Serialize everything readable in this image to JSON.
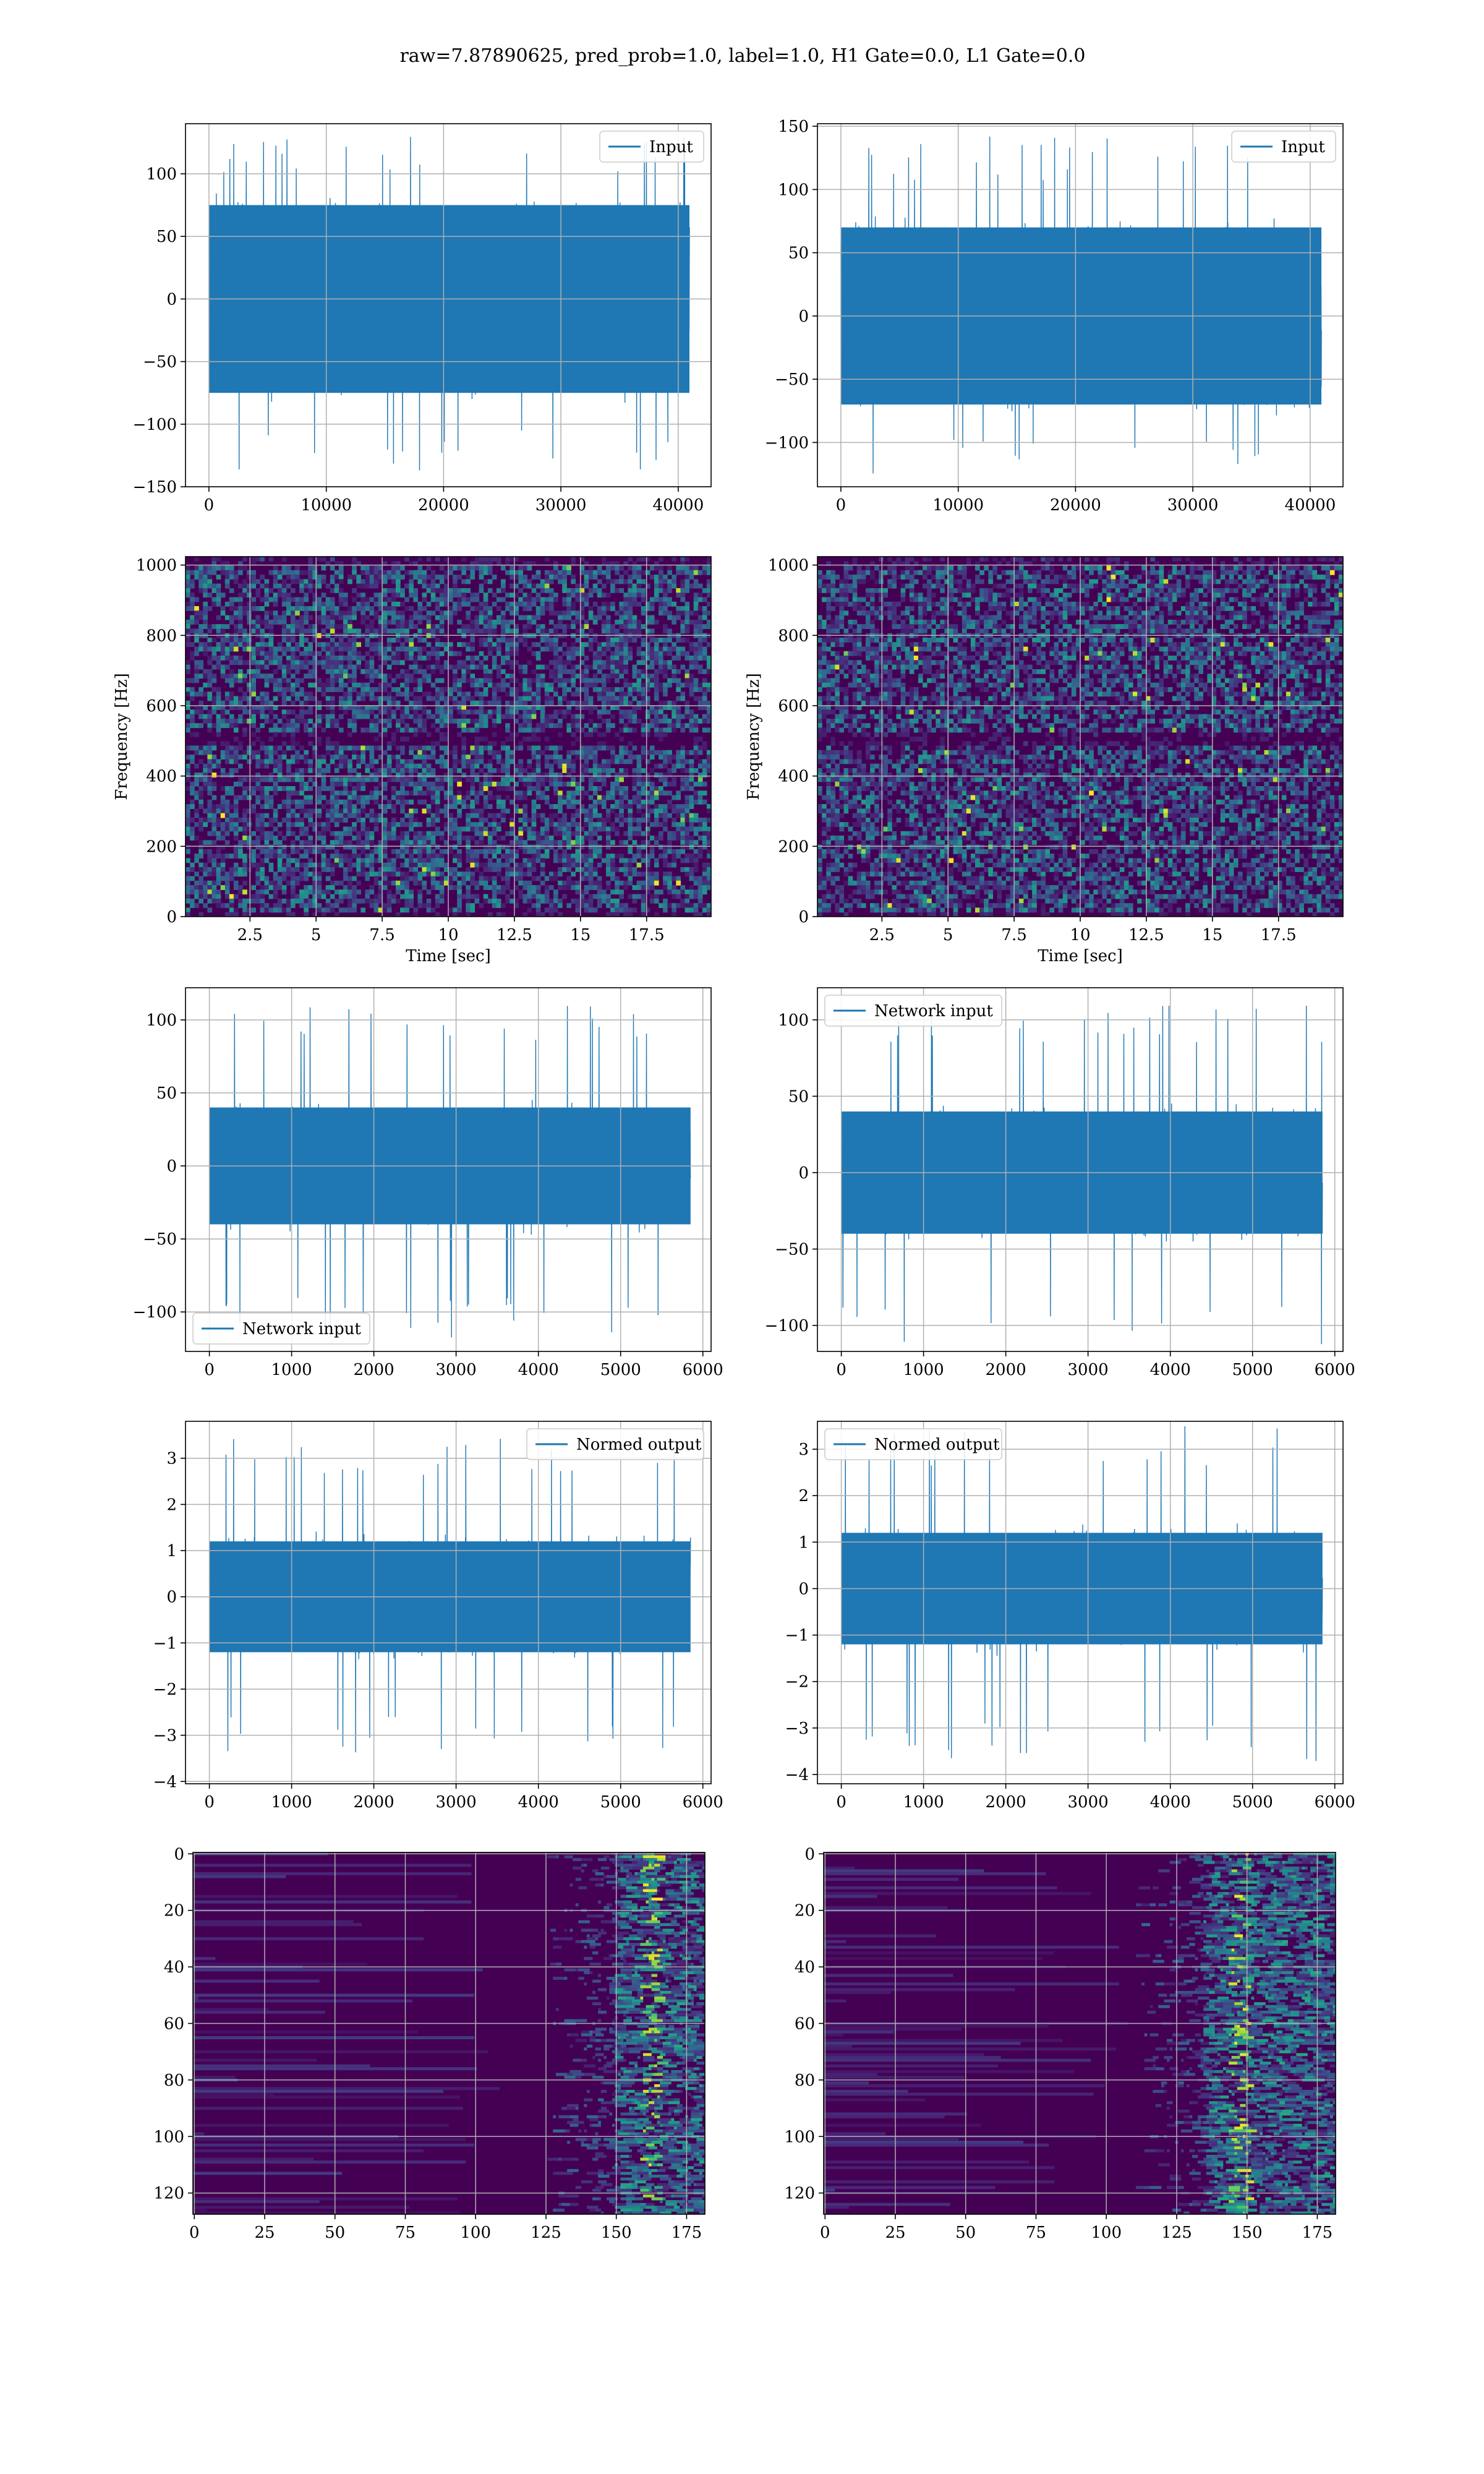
{
  "figure_title": "raw=7.87890625, pred_prob=1.0, label=1.0, H1 Gate=0.0, L1 Gate=0.0",
  "colors": {
    "series": "#1f77b4",
    "viridis_low": "#440154",
    "viridis_mid": "#21918c",
    "viridis_high": "#fde725",
    "grid": "#b0b0b0"
  },
  "chart_data": [
    {
      "id": "h1-input",
      "type": "line",
      "legend": "Input",
      "legend_loc": "upper right",
      "xlim": [
        -2000,
        42800
      ],
      "ylim": [
        -150,
        140
      ],
      "xticks": [
        0,
        10000,
        20000,
        30000,
        40000
      ],
      "yticks": [
        -150,
        -100,
        -50,
        0,
        50,
        100
      ],
      "grid": true,
      "series": [
        {
          "name": "Input",
          "n": 40960,
          "x_range": [
            0,
            40960
          ],
          "band": [
            -75,
            75
          ],
          "peaks": [
            -137,
            130
          ]
        }
      ]
    },
    {
      "id": "l1-input",
      "type": "line",
      "legend": "Input",
      "legend_loc": "upper right",
      "xlim": [
        -2000,
        42800
      ],
      "ylim": [
        -135,
        152
      ],
      "xticks": [
        0,
        10000,
        20000,
        30000,
        40000
      ],
      "yticks": [
        -100,
        -50,
        0,
        50,
        100,
        150
      ],
      "grid": true,
      "series": [
        {
          "name": "Input",
          "n": 40960,
          "x_range": [
            0,
            40960
          ],
          "band": [
            -70,
            70
          ],
          "peaks": [
            -125,
            142
          ]
        }
      ]
    },
    {
      "id": "h1-spectrogram",
      "type": "heatmap",
      "xlabel": "Time [sec]",
      "ylabel": "Frequency [Hz]",
      "xlim": [
        0.06,
        19.94
      ],
      "ylim": [
        0,
        1024
      ],
      "xticks": [
        2.5,
        5.0,
        7.5,
        10.0,
        12.5,
        15.0,
        17.5
      ],
      "yticks": [
        0,
        200,
        400,
        600,
        800,
        1000
      ],
      "colormap": "viridis",
      "grid": true
    },
    {
      "id": "l1-spectrogram",
      "type": "heatmap",
      "xlabel": "Time [sec]",
      "ylabel": "Frequency [Hz]",
      "xlim": [
        0.06,
        19.94
      ],
      "ylim": [
        0,
        1024
      ],
      "xticks": [
        2.5,
        5.0,
        7.5,
        10.0,
        12.5,
        15.0,
        17.5
      ],
      "yticks": [
        0,
        200,
        400,
        600,
        800,
        1000
      ],
      "colormap": "viridis",
      "grid": true
    },
    {
      "id": "h1-network-input",
      "type": "line",
      "legend": "Network input",
      "legend_loc": "lower left",
      "xlim": [
        -290,
        6100
      ],
      "ylim": [
        -127,
        122
      ],
      "xticks": [
        0,
        1000,
        2000,
        3000,
        4000,
        5000,
        6000
      ],
      "yticks": [
        -100,
        -50,
        0,
        50,
        100
      ],
      "grid": true,
      "series": [
        {
          "name": "Network input",
          "n": 5850,
          "x_range": [
            0,
            5850
          ],
          "band": [
            -40,
            40
          ],
          "peaks": [
            -118,
            110
          ]
        }
      ]
    },
    {
      "id": "l1-network-input",
      "type": "line",
      "legend": "Network input",
      "legend_loc": "upper left",
      "xlim": [
        -290,
        6100
      ],
      "ylim": [
        -117,
        121
      ],
      "xticks": [
        0,
        1000,
        2000,
        3000,
        4000,
        5000,
        6000
      ],
      "yticks": [
        -100,
        -50,
        0,
        50,
        100
      ],
      "grid": true,
      "series": [
        {
          "name": "Network input",
          "n": 5850,
          "x_range": [
            0,
            5850
          ],
          "band": [
            -40,
            40
          ],
          "peaks": [
            -115,
            110
          ]
        }
      ]
    },
    {
      "id": "h1-normed-output",
      "type": "line",
      "legend": "Normed output",
      "legend_loc": "upper right",
      "xlim": [
        -290,
        6100
      ],
      "ylim": [
        -4.05,
        3.8
      ],
      "xticks": [
        0,
        1000,
        2000,
        3000,
        4000,
        5000,
        6000
      ],
      "yticks": [
        -4,
        -3,
        -2,
        -1,
        0,
        1,
        2,
        3
      ],
      "grid": true,
      "series": [
        {
          "name": "Normed output",
          "n": 5850,
          "x_range": [
            0,
            5850
          ],
          "band": [
            -1.2,
            1.2
          ],
          "peaks": [
            -3.4,
            3.5
          ]
        }
      ]
    },
    {
      "id": "l1-normed-output",
      "type": "line",
      "legend": "Normed output",
      "legend_loc": "upper left",
      "xlim": [
        -290,
        6100
      ],
      "ylim": [
        -4.2,
        3.6
      ],
      "xticks": [
        0,
        1000,
        2000,
        3000,
        4000,
        5000,
        6000
      ],
      "yticks": [
        -4,
        -3,
        -2,
        -1,
        0,
        1,
        2,
        3
      ],
      "grid": true,
      "series": [
        {
          "name": "Normed output",
          "n": 5850,
          "x_range": [
            0,
            5850
          ],
          "band": [
            -1.2,
            1.2
          ],
          "peaks": [
            -3.8,
            3.5
          ]
        }
      ]
    },
    {
      "id": "h1-feature-map",
      "type": "heatmap",
      "xlim": [
        -0.5,
        181.5
      ],
      "ylim": [
        127.5,
        -0.5
      ],
      "y_inverted": true,
      "xticks": [
        0,
        25,
        50,
        75,
        100,
        125,
        150,
        175
      ],
      "yticks": [
        0,
        20,
        40,
        60,
        80,
        100,
        120
      ],
      "colormap": "viridis",
      "grid": true,
      "hot_columns": [
        150,
        180
      ]
    },
    {
      "id": "l1-feature-map",
      "type": "heatmap",
      "xlim": [
        -0.5,
        181.5
      ],
      "ylim": [
        127.5,
        -0.5
      ],
      "y_inverted": true,
      "xticks": [
        0,
        25,
        50,
        75,
        100,
        125,
        150,
        175
      ],
      "yticks": [
        0,
        20,
        40,
        60,
        80,
        100,
        120
      ],
      "colormap": "viridis",
      "grid": true,
      "hot_columns": [
        135,
        182
      ]
    }
  ]
}
